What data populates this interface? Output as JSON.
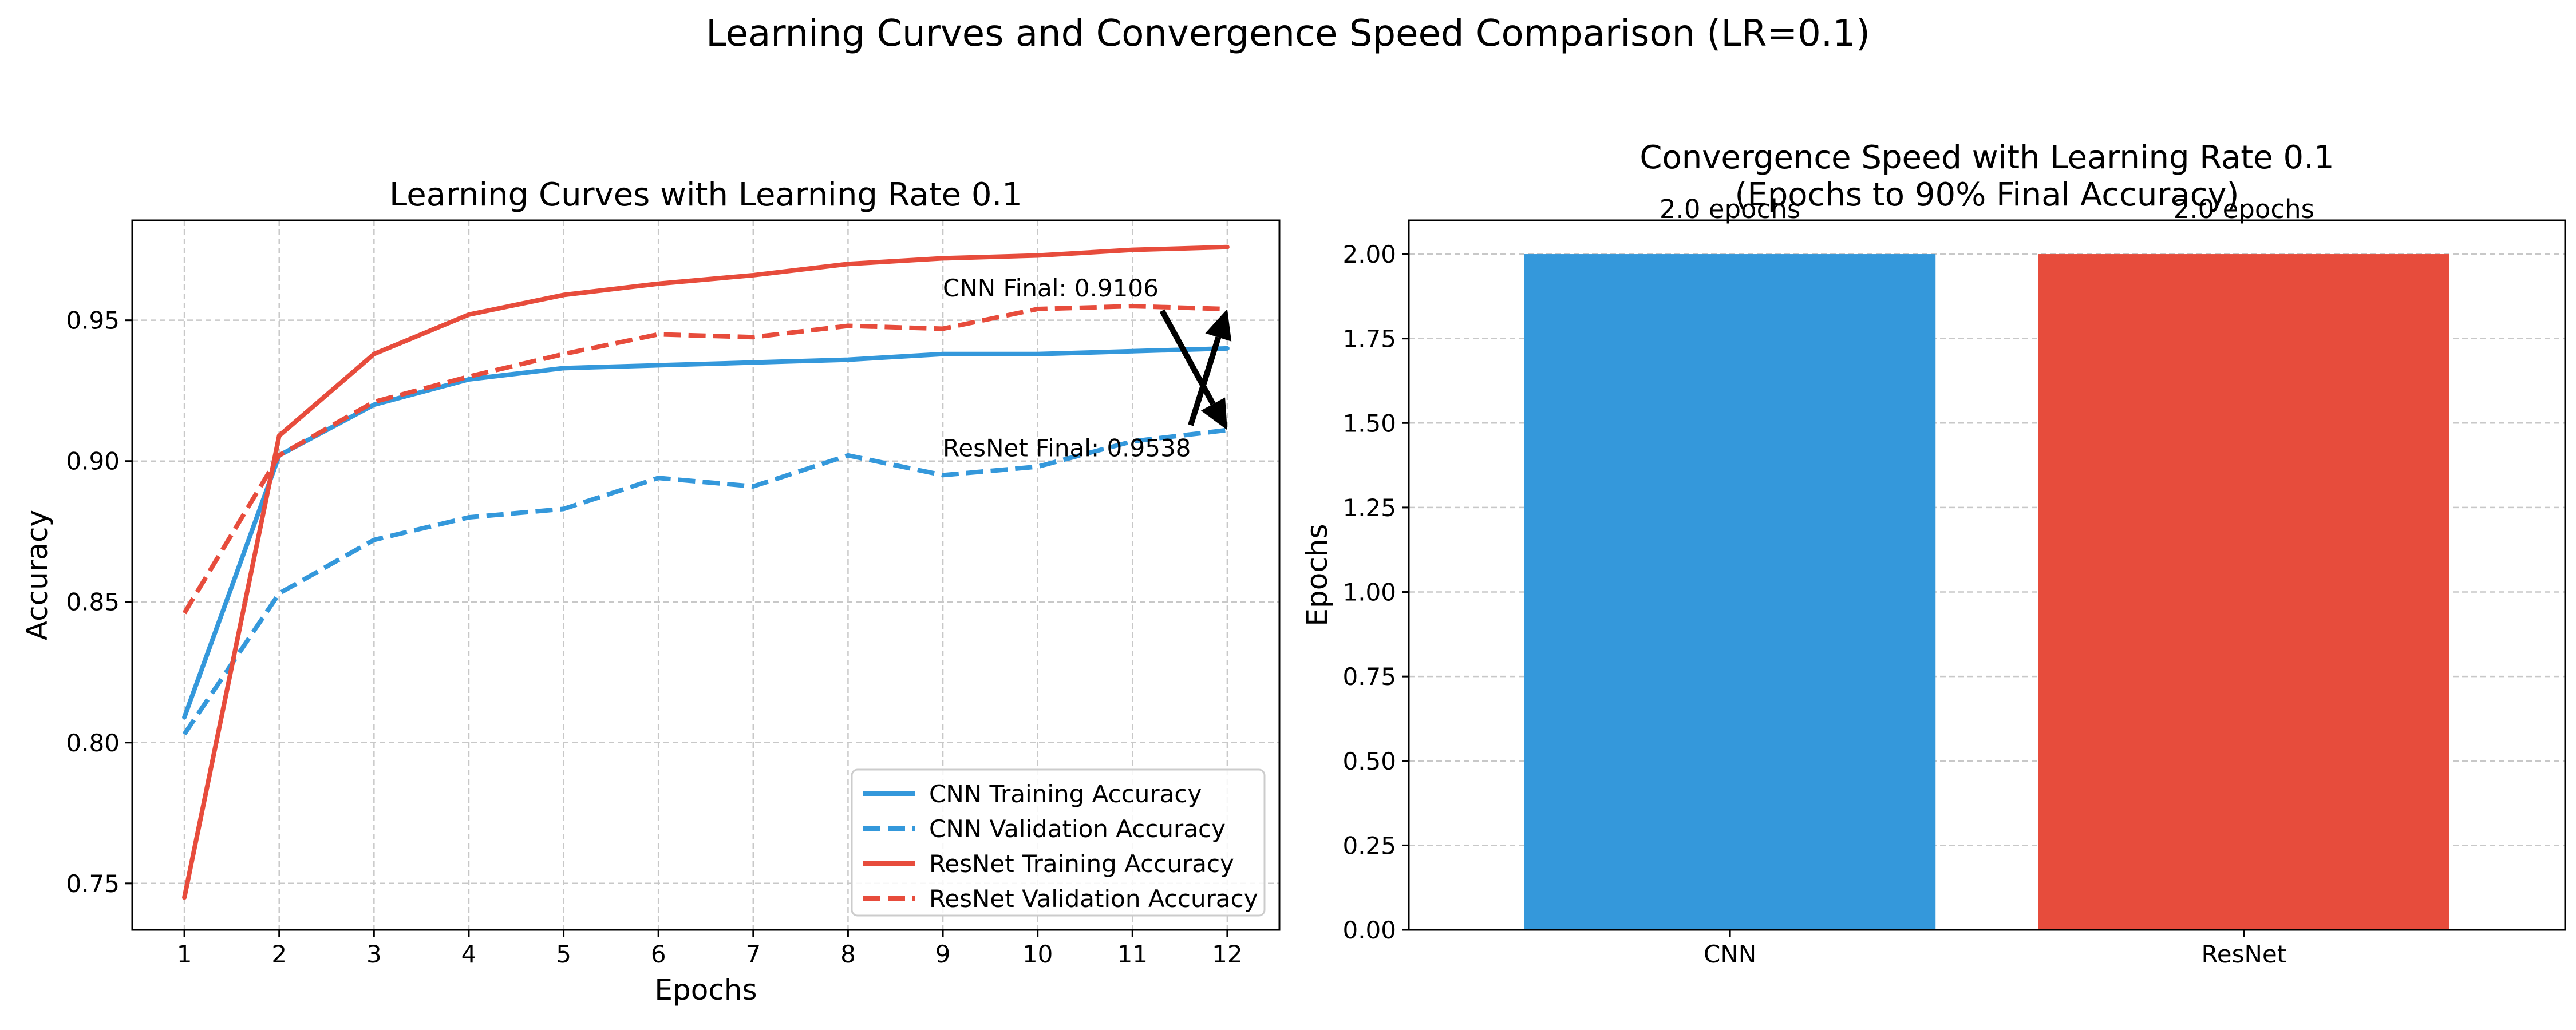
{
  "suptitle": "Learning Curves and Convergence Speed Comparison (LR=0.1)",
  "colors": {
    "cnn": "#3498db",
    "resnet": "#e74c3c",
    "grid": "#c8c8c8",
    "arrow": "#000000"
  },
  "chart_data": [
    {
      "type": "line",
      "title": "Learning Curves with Learning Rate 0.1",
      "xlabel": "Epochs",
      "ylabel": "Accuracy",
      "x": [
        1,
        2,
        3,
        4,
        5,
        6,
        7,
        8,
        9,
        10,
        11,
        12
      ],
      "xlim": [
        0.45,
        12.55
      ],
      "ylim": [
        0.7335,
        0.9855
      ],
      "yticks": [
        0.75,
        0.8,
        0.85,
        0.9,
        0.95
      ],
      "ytick_labels": [
        "0.75",
        "0.80",
        "0.85",
        "0.90",
        "0.95"
      ],
      "grid": true,
      "legend_position": "lower-right",
      "series": [
        {
          "name": "CNN Training Accuracy",
          "color": "#3498db",
          "style": "solid",
          "values": [
            0.809,
            0.902,
            0.92,
            0.929,
            0.933,
            0.934,
            0.935,
            0.936,
            0.938,
            0.938,
            0.939,
            0.94
          ]
        },
        {
          "name": "CNN Validation Accuracy",
          "color": "#3498db",
          "style": "dashed",
          "values": [
            0.803,
            0.853,
            0.872,
            0.88,
            0.883,
            0.894,
            0.891,
            0.902,
            0.895,
            0.898,
            0.907,
            0.911
          ]
        },
        {
          "name": "ResNet Training Accuracy",
          "color": "#e74c3c",
          "style": "solid",
          "values": [
            0.745,
            0.909,
            0.938,
            0.952,
            0.959,
            0.963,
            0.966,
            0.97,
            0.972,
            0.973,
            0.975,
            0.976
          ]
        },
        {
          "name": "ResNet Validation Accuracy",
          "color": "#e74c3c",
          "style": "dashed",
          "values": [
            0.846,
            0.902,
            0.921,
            0.93,
            0.938,
            0.945,
            0.944,
            0.948,
            0.947,
            0.954,
            0.955,
            0.954
          ]
        }
      ],
      "annotations": [
        {
          "text": "CNN Final: 0.9106",
          "text_x": 9.0,
          "text_y": 0.9585,
          "point_x": 12,
          "point_y": 0.911
        },
        {
          "text": "ResNet Final: 0.9538",
          "text_x": 9.0,
          "text_y": 0.9017,
          "point_x": 12,
          "point_y": 0.954
        }
      ]
    },
    {
      "type": "bar",
      "title_line1": "Convergence Speed with Learning Rate 0.1",
      "title_line2": "(Epochs to 90% Final Accuracy)",
      "xlabel": "",
      "ylabel": "Epochs",
      "categories": [
        "CNN",
        "ResNet"
      ],
      "values": [
        2.0,
        2.0
      ],
      "colors": [
        "#3498db",
        "#e74c3c"
      ],
      "bar_labels": [
        "2.0 epochs",
        "2.0 epochs"
      ],
      "ylim": [
        0,
        2.1
      ],
      "yticks": [
        0.0,
        0.25,
        0.5,
        0.75,
        1.0,
        1.25,
        1.5,
        1.75,
        2.0
      ],
      "ytick_labels": [
        "0.00",
        "0.25",
        "0.50",
        "0.75",
        "1.00",
        "1.25",
        "1.50",
        "1.75",
        "2.00"
      ],
      "grid": true
    }
  ]
}
